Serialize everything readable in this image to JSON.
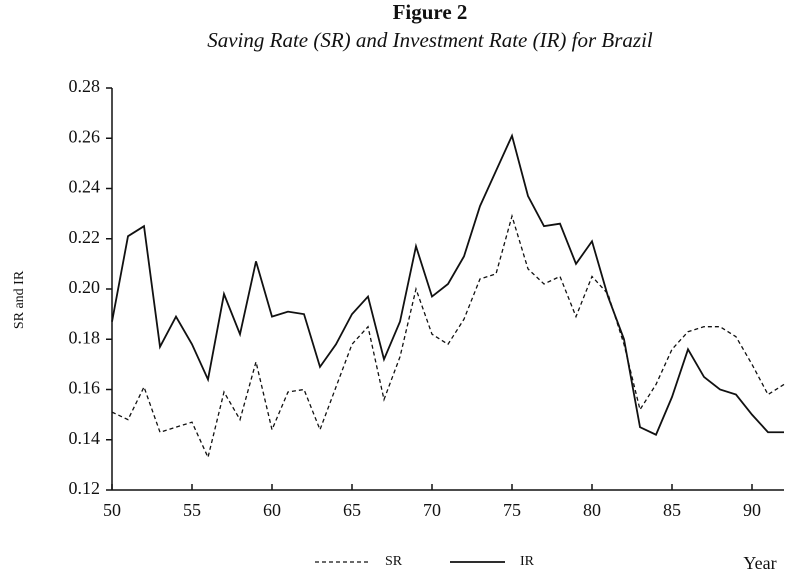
{
  "chart_data": {
    "type": "line",
    "title": "Figure 2",
    "subtitle": "Saving Rate (SR) and Investment Rate (IR) for Brazil",
    "y_label": "SR and IR",
    "x_label": "Year",
    "x": [
      50,
      51,
      52,
      53,
      54,
      55,
      56,
      57,
      58,
      59,
      60,
      61,
      62,
      63,
      64,
      65,
      66,
      67,
      68,
      69,
      70,
      71,
      72,
      73,
      74,
      75,
      76,
      77,
      78,
      79,
      80,
      81,
      82,
      83,
      84,
      85,
      86,
      87,
      88,
      89,
      90,
      91,
      92
    ],
    "series": [
      {
        "name": "SR",
        "color": "#111111",
        "dash": true,
        "values": [
          0.151,
          0.148,
          0.161,
          0.143,
          0.145,
          0.147,
          0.133,
          0.159,
          0.148,
          0.171,
          0.144,
          0.159,
          0.16,
          0.144,
          0.161,
          0.178,
          0.185,
          0.156,
          0.173,
          0.2,
          0.182,
          0.178,
          0.188,
          0.204,
          0.206,
          0.229,
          0.208,
          0.202,
          0.205,
          0.189,
          0.205,
          0.198,
          0.178,
          0.152,
          0.162,
          0.176,
          0.183,
          0.185,
          0.185,
          0.181,
          0.17,
          0.158,
          0.162
        ]
      },
      {
        "name": "IR",
        "color": "#111111",
        "dash": false,
        "values": [
          0.187,
          0.221,
          0.225,
          0.177,
          0.189,
          0.178,
          0.164,
          0.198,
          0.182,
          0.211,
          0.189,
          0.191,
          0.19,
          0.169,
          0.178,
          0.19,
          0.197,
          0.172,
          0.187,
          0.217,
          0.197,
          0.202,
          0.213,
          0.233,
          0.247,
          0.261,
          0.237,
          0.225,
          0.226,
          0.21,
          0.219,
          0.197,
          0.18,
          0.145,
          0.142,
          0.157,
          0.176,
          0.165,
          0.16,
          0.158,
          0.15,
          0.143,
          0.143
        ]
      }
    ],
    "xlim": [
      50,
      92
    ],
    "xticks": [
      50,
      55,
      60,
      65,
      70,
      75,
      80,
      85,
      90
    ],
    "ylim": [
      0.12,
      0.28
    ],
    "yticks": [
      0.12,
      0.14,
      0.16,
      0.18,
      {
        "value": 0.2,
        "label": "0.20"
      },
      0.22,
      0.24,
      0.26,
      0.28
    ]
  }
}
